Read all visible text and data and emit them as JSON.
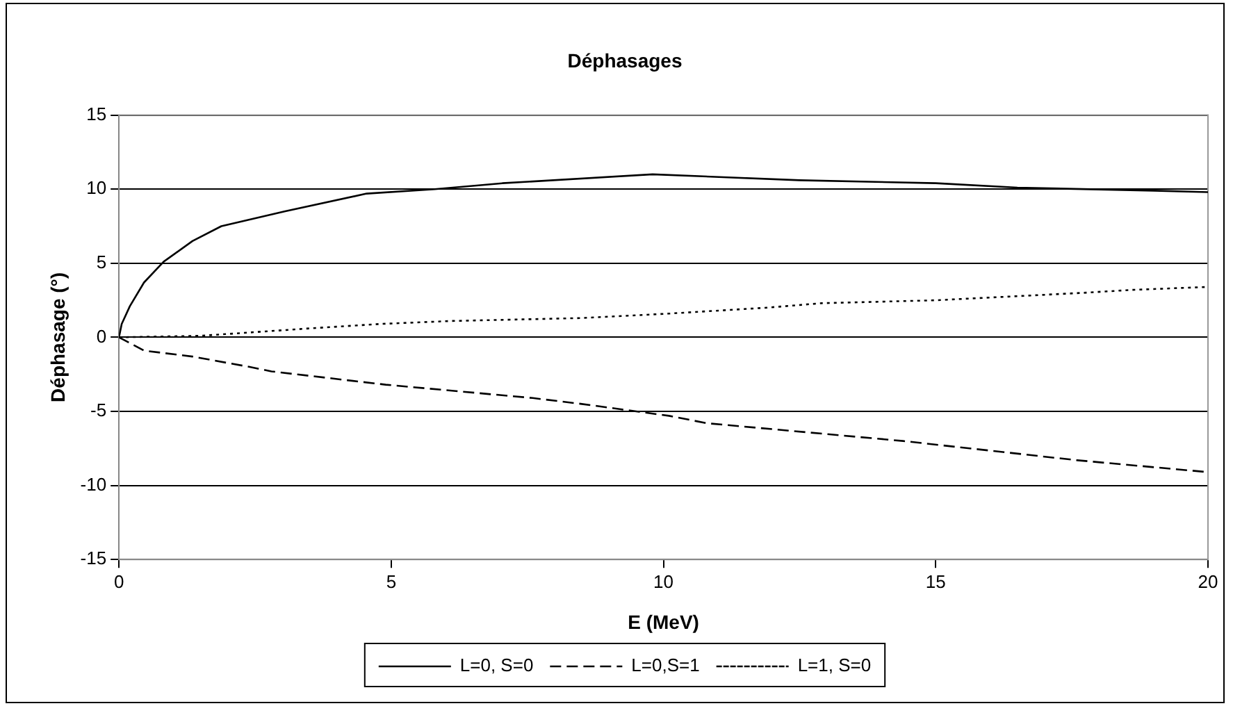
{
  "chart_data": {
    "type": "line",
    "title": "Déphasages",
    "xlabel": "E (MeV)",
    "ylabel": "Déphasage (°)",
    "xlim": [
      0,
      20
    ],
    "xticks": [
      0,
      5,
      10,
      15,
      20
    ],
    "ylim": [
      -15,
      15
    ],
    "yticks": [
      -15,
      -10,
      -5,
      0,
      5,
      10,
      15
    ],
    "grid": "y",
    "legend": "bottom",
    "marker": "none",
    "series": [
      {
        "name": "L=0, S=0",
        "color": "#000000",
        "line_style": "solid",
        "x": [
          0,
          0.05,
          0.2,
          0.46,
          0.82,
          1.35,
          1.88,
          3.04,
          4.55,
          5.8,
          7.04,
          9.8,
          12.5,
          15,
          16.5,
          19,
          20
        ],
        "values": [
          0,
          0.9,
          2.1,
          3.7,
          5.1,
          6.5,
          7.5,
          8.5,
          9.7,
          10,
          10.4,
          11.0,
          10.6,
          10.4,
          10.1,
          9.9,
          9.8
        ]
      },
      {
        "name": "L=0,S=1",
        "color": "#000000",
        "line_style": "dashed",
        "x": [
          0,
          0.46,
          1.35,
          2.4,
          2.8,
          4.9,
          7.6,
          8.5,
          10.1,
          10.8,
          12.3,
          14.4,
          17.6,
          20
        ],
        "values": [
          0,
          -0.9,
          -1.3,
          -2.0,
          -2.3,
          -3.2,
          -4.1,
          -4.5,
          -5.3,
          -5.8,
          -6.3,
          -7.0,
          -8.3,
          -9.1
        ]
      },
      {
        "name": "L=1, S=0",
        "color": "#000000",
        "line_style": "dotted",
        "x": [
          0,
          1.5,
          3.5,
          4.8,
          6.1,
          8.5,
          10.1,
          11.9,
          12.9,
          15,
          17.7,
          18.6,
          20
        ],
        "values": [
          0,
          0.1,
          0.6,
          0.9,
          1.1,
          1.3,
          1.6,
          2.0,
          2.3,
          2.5,
          3.0,
          3.2,
          3.4
        ]
      }
    ]
  }
}
